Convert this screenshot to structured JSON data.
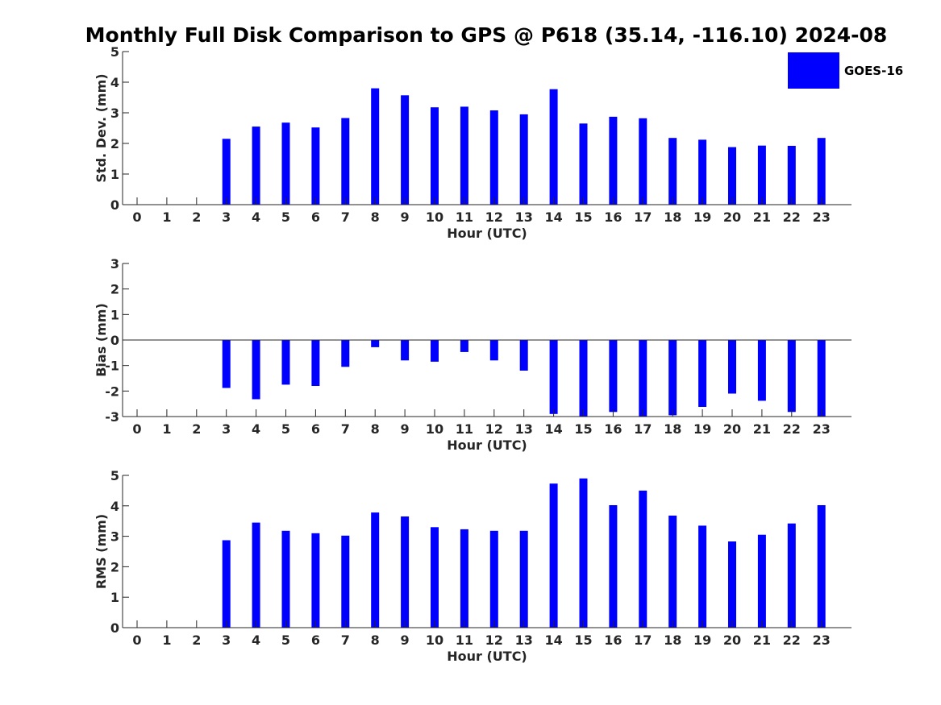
{
  "title": "Monthly Full Disk Comparison to GPS @ P618 (35.14, -116.10) 2024-08",
  "legend": {
    "label": "GOES-16",
    "color": "#0000ff"
  },
  "chart_data": [
    {
      "type": "bar",
      "title": "",
      "xlabel": "Hour (UTC)",
      "ylabel": "Std. Dev. (mm)",
      "categories": [
        "0",
        "1",
        "2",
        "3",
        "4",
        "5",
        "6",
        "7",
        "8",
        "9",
        "10",
        "11",
        "12",
        "13",
        "14",
        "15",
        "16",
        "17",
        "18",
        "19",
        "20",
        "21",
        "22",
        "23"
      ],
      "values": [
        null,
        null,
        null,
        2.15,
        2.55,
        2.68,
        2.52,
        2.83,
        3.8,
        3.57,
        3.18,
        3.2,
        3.08,
        2.95,
        3.77,
        2.65,
        2.87,
        2.82,
        2.18,
        2.12,
        1.88,
        1.93,
        1.92,
        2.18
      ],
      "ylim": [
        0,
        5
      ],
      "yticks": [
        0,
        1,
        2,
        3,
        4,
        5
      ],
      "legend_position": "top-right",
      "grid": false
    },
    {
      "type": "bar",
      "title": "",
      "xlabel": "Hour (UTC)",
      "ylabel": "Bias (mm)",
      "categories": [
        "0",
        "1",
        "2",
        "3",
        "4",
        "5",
        "6",
        "7",
        "8",
        "9",
        "10",
        "11",
        "12",
        "13",
        "14",
        "15",
        "16",
        "17",
        "18",
        "19",
        "20",
        "21",
        "22",
        "23"
      ],
      "values": [
        null,
        null,
        null,
        -1.88,
        -2.32,
        -1.75,
        -1.8,
        -1.05,
        -0.28,
        -0.8,
        -0.85,
        -0.47,
        -0.8,
        -1.2,
        -2.9,
        -3.0,
        -2.82,
        -3.0,
        -2.95,
        -2.62,
        -2.1,
        -2.38,
        -2.82,
        -3.0
      ],
      "ylim": [
        -3,
        3
      ],
      "yticks": [
        -3,
        -2,
        -1,
        0,
        1,
        2,
        3
      ],
      "grid": false
    },
    {
      "type": "bar",
      "title": "",
      "xlabel": "Hour (UTC)",
      "ylabel": "RMS (mm)",
      "categories": [
        "0",
        "1",
        "2",
        "3",
        "4",
        "5",
        "6",
        "7",
        "8",
        "9",
        "10",
        "11",
        "12",
        "13",
        "14",
        "15",
        "16",
        "17",
        "18",
        "19",
        "20",
        "21",
        "22",
        "23"
      ],
      "values": [
        null,
        null,
        null,
        2.87,
        3.45,
        3.18,
        3.1,
        3.02,
        3.78,
        3.65,
        3.3,
        3.23,
        3.18,
        3.18,
        4.73,
        4.9,
        4.02,
        4.5,
        3.68,
        3.35,
        2.83,
        3.05,
        3.42,
        4.02
      ],
      "ylim": [
        0,
        5
      ],
      "yticks": [
        0,
        1,
        2,
        3,
        4,
        5
      ],
      "grid": false
    }
  ]
}
